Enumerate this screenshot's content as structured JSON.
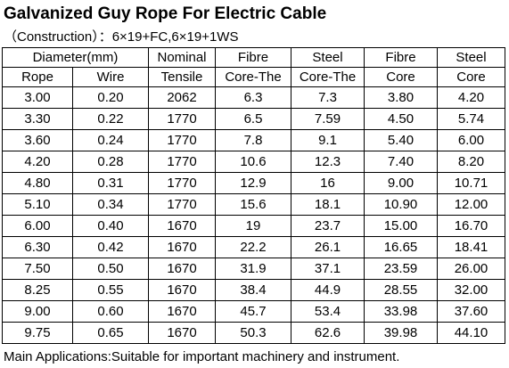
{
  "title": "Galvanized Guy Rope For Electric Cable",
  "construction": "（Construction）：6×19+FC,6×19+1WS",
  "header": {
    "diameter": "Diameter(mm)",
    "rope": "Rope",
    "wire": "Wire",
    "nominal_top": "Nominal",
    "nominal_bottom": "Tensile",
    "fibre_the_top": "Fibre",
    "fibre_the_bottom": "Core-The",
    "steel_the_top": "Steel",
    "steel_the_bottom": "Core-The",
    "fibre_core_top": "Fibre",
    "fibre_core_bottom": "Core",
    "steel_core_top": "Steel",
    "steel_core_bottom": "Core"
  },
  "rows": [
    [
      "3.00",
      "0.20",
      "2062",
      "6.3",
      "7.3",
      "3.80",
      "4.20"
    ],
    [
      "3.30",
      "0.22",
      "1770",
      "6.5",
      "7.59",
      "4.50",
      "5.74"
    ],
    [
      "3.60",
      "0.24",
      "1770",
      "7.8",
      "9.1",
      "5.40",
      "6.00"
    ],
    [
      "4.20",
      "0.28",
      "1770",
      "10.6",
      "12.3",
      "7.40",
      "8.20"
    ],
    [
      "4.80",
      "0.31",
      "1770",
      "12.9",
      "16",
      "9.00",
      "10.71"
    ],
    [
      "5.10",
      "0.34",
      "1770",
      "15.6",
      "18.1",
      "10.90",
      "12.00"
    ],
    [
      "6.00",
      "0.40",
      "1670",
      "19",
      "23.7",
      "15.00",
      "16.70"
    ],
    [
      "6.30",
      "0.42",
      "1670",
      "22.2",
      "26.1",
      "16.65",
      "18.41"
    ],
    [
      "7.50",
      "0.50",
      "1670",
      "31.9",
      "37.1",
      "23.59",
      "26.00"
    ],
    [
      "8.25",
      "0.55",
      "1670",
      "38.4",
      "44.9",
      "28.55",
      "32.00"
    ],
    [
      "9.00",
      "0.60",
      "1670",
      "45.7",
      "53.4",
      "33.98",
      "37.60"
    ],
    [
      "9.75",
      "0.65",
      "1670",
      "50.3",
      "62.6",
      "39.98",
      "44.10"
    ]
  ],
  "footer": "Main Applications:Suitable for important machinery and instrument."
}
